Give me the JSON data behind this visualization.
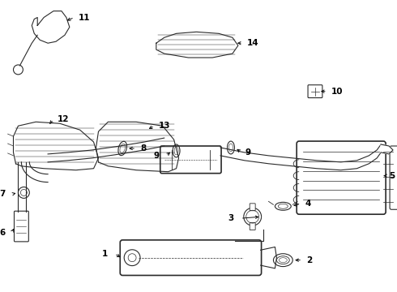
{
  "bg_color": "#ffffff",
  "line_color": "#2a2a2a",
  "fig_width": 4.9,
  "fig_height": 3.6,
  "dpi": 100,
  "xlim": [
    0,
    490
  ],
  "ylim": [
    0,
    360
  ]
}
